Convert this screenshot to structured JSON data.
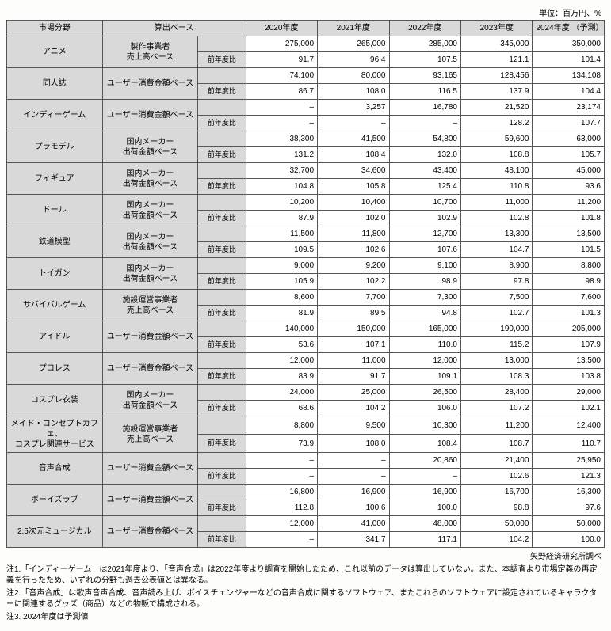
{
  "unit_label": "単位：百万円、%",
  "headers": {
    "category": "市場分野",
    "base": "算出ベース",
    "y2020": "2020年度",
    "y2021": "2021年度",
    "y2022": "2022年度",
    "y2023": "2023年度",
    "y2024": "2024年度\n（予測）"
  },
  "sub_yoy": "前年度比",
  "rows": [
    {
      "cat": "アニメ",
      "base": "製作事業者\n売上高ベース",
      "v": [
        "275,000",
        "265,000",
        "285,000",
        "345,000",
        "350,000"
      ],
      "y": [
        "91.7",
        "96.4",
        "107.5",
        "121.1",
        "101.4"
      ]
    },
    {
      "cat": "同人誌",
      "base": "ユーザー消費金額ベース",
      "v": [
        "74,100",
        "80,000",
        "93,165",
        "128,456",
        "134,108"
      ],
      "y": [
        "86.7",
        "108.0",
        "116.5",
        "137.9",
        "104.4"
      ]
    },
    {
      "cat": "インディーゲーム",
      "base": "ユーザー消費金額ベース",
      "v": [
        "–",
        "3,257",
        "16,780",
        "21,520",
        "23,174"
      ],
      "y": [
        "–",
        "–",
        "–",
        "128.2",
        "107.7"
      ]
    },
    {
      "cat": "プラモデル",
      "base": "国内メーカー\n出荷金額ベース",
      "v": [
        "38,300",
        "41,500",
        "54,800",
        "59,600",
        "63,000"
      ],
      "y": [
        "131.2",
        "108.4",
        "132.0",
        "108.8",
        "105.7"
      ]
    },
    {
      "cat": "フィギュア",
      "base": "国内メーカー\n出荷金額ベース",
      "v": [
        "32,700",
        "34,600",
        "43,400",
        "48,100",
        "45,000"
      ],
      "y": [
        "104.8",
        "105.8",
        "125.4",
        "110.8",
        "93.6"
      ]
    },
    {
      "cat": "ドール",
      "base": "国内メーカー\n出荷金額ベース",
      "v": [
        "10,200",
        "10,400",
        "10,700",
        "11,000",
        "11,200"
      ],
      "y": [
        "87.9",
        "102.0",
        "102.9",
        "102.8",
        "101.8"
      ]
    },
    {
      "cat": "鉄道模型",
      "base": "国内メーカー\n出荷金額ベース",
      "v": [
        "11,500",
        "11,800",
        "12,700",
        "13,300",
        "13,500"
      ],
      "y": [
        "109.5",
        "102.6",
        "107.6",
        "104.7",
        "101.5"
      ]
    },
    {
      "cat": "トイガン",
      "base": "国内メーカー\n出荷金額ベース",
      "v": [
        "9,000",
        "9,200",
        "9,100",
        "8,900",
        "8,800"
      ],
      "y": [
        "105.9",
        "102.2",
        "98.9",
        "97.8",
        "98.9"
      ]
    },
    {
      "cat": "サバイバルゲーム",
      "base": "施設運営事業者\n売上高ベース",
      "v": [
        "8,600",
        "7,700",
        "7,300",
        "7,500",
        "7,600"
      ],
      "y": [
        "81.9",
        "89.5",
        "94.8",
        "102.7",
        "101.3"
      ]
    },
    {
      "cat": "アイドル",
      "base": "ユーザー消費金額ベース",
      "v": [
        "140,000",
        "150,000",
        "165,000",
        "190,000",
        "205,000"
      ],
      "y": [
        "53.6",
        "107.1",
        "110.0",
        "115.2",
        "107.9"
      ]
    },
    {
      "cat": "プロレス",
      "base": "ユーザー消費金額ベース",
      "v": [
        "12,000",
        "11,000",
        "12,000",
        "13,000",
        "13,500"
      ],
      "y": [
        "83.9",
        "91.7",
        "109.1",
        "108.3",
        "103.8"
      ]
    },
    {
      "cat": "コスプレ衣装",
      "base": "国内メーカー\n出荷金額ベース",
      "v": [
        "24,000",
        "25,000",
        "26,500",
        "28,400",
        "29,000"
      ],
      "y": [
        "68.6",
        "104.2",
        "106.0",
        "107.2",
        "102.1"
      ]
    },
    {
      "cat": "メイド・コンセプトカフェ、\nコスプレ関連サービス",
      "base": "施設運営事業者\n売上高ベース",
      "v": [
        "8,800",
        "9,500",
        "10,300",
        "11,200",
        "12,400"
      ],
      "y": [
        "73.9",
        "108.0",
        "108.4",
        "108.7",
        "110.7"
      ]
    },
    {
      "cat": "音声合成",
      "base": "ユーザー消費金額ベース",
      "v": [
        "–",
        "–",
        "20,860",
        "21,400",
        "25,950"
      ],
      "y": [
        "–",
        "–",
        "–",
        "102.6",
        "121.3"
      ]
    },
    {
      "cat": "ボーイズラブ",
      "base": "ユーザー消費金額ベース",
      "v": [
        "16,800",
        "16,900",
        "16,900",
        "16,700",
        "16,300"
      ],
      "y": [
        "112.8",
        "100.6",
        "100.0",
        "98.8",
        "97.6"
      ]
    },
    {
      "cat": "2.5次元ミュージカル",
      "base": "ユーザー消費金額ベース",
      "v": [
        "12,000",
        "41,000",
        "48,000",
        "50,000",
        "50,000"
      ],
      "y": [
        "–",
        "341.7",
        "117.1",
        "104.2",
        "100.0"
      ]
    }
  ],
  "source": "矢野経済研究所調べ",
  "notes": [
    "注1.「インディーゲーム」は2021年度より、「音声合成」は2022年度より調査を開始したため、これ以前のデータは算出していない。また、本調査より市場定義の再定義を行ったため、いずれの分野も過去公表値とは異なる。",
    "注2.「音声合成」は歌声音声合成、音声読み上げ、ボイスチェンジャーなどの音声合成に関するソフトウェア、またこれらのソフトウェアに設定されているキャラクターに関連するグッズ（商品）などの物販で構成される。",
    "注3. 2024年度は予測値"
  ]
}
